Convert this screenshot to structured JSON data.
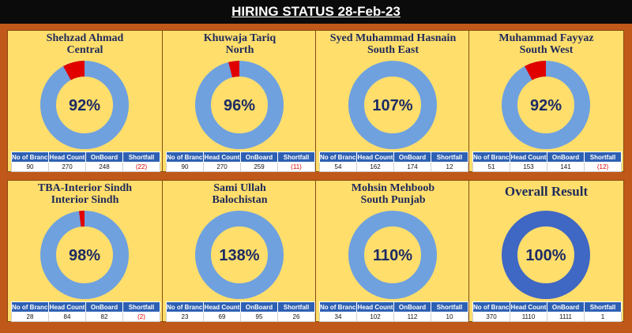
{
  "header": {
    "title": "HIRING STATUS 28-Feb-23"
  },
  "table_headers": [
    "No of Branch",
    "Head Count",
    "OnBoard",
    "Shortfall"
  ],
  "colors": {
    "ring": "#6fa1df",
    "shortfall": "#e00000",
    "overall_ring": "#3f67c4",
    "background": "#c0581a",
    "panel": "#ffde6b",
    "header_cell": "#2d60b3"
  },
  "panels": [
    {
      "name": "Shehzad Ahmad",
      "region": "Central",
      "percent_label": "92%",
      "fill": 0.92,
      "branches": "90",
      "head_count": "270",
      "onboard": "248",
      "shortfall": "(22)"
    },
    {
      "name": "Khuwaja Tariq",
      "region": "North",
      "percent_label": "96%",
      "fill": 0.96,
      "branches": "90",
      "head_count": "270",
      "onboard": "259",
      "shortfall": "(11)"
    },
    {
      "name": "Syed Muhammad Hasnain",
      "region": "South East",
      "percent_label": "107%",
      "fill": 1.0,
      "branches": "54",
      "head_count": "162",
      "onboard": "174",
      "shortfall": "12"
    },
    {
      "name": "Muhammad Fayyaz",
      "region": "South West",
      "percent_label": "92%",
      "fill": 0.92,
      "branches": "51",
      "head_count": "153",
      "onboard": "141",
      "shortfall": "(12)"
    },
    {
      "name": "TBA-Interior Sindh",
      "region": "Interior Sindh",
      "percent_label": "98%",
      "fill": 0.98,
      "branches": "28",
      "head_count": "84",
      "onboard": "82",
      "shortfall": "(2)"
    },
    {
      "name": "Sami Ullah",
      "region": "Balochistan",
      "percent_label": "138%",
      "fill": 1.0,
      "branches": "23",
      "head_count": "69",
      "onboard": "95",
      "shortfall": "26"
    },
    {
      "name": "Mohsin Mehboob",
      "region": "South Punjab",
      "percent_label": "110%",
      "fill": 1.0,
      "branches": "34",
      "head_count": "102",
      "onboard": "112",
      "shortfall": "10"
    },
    {
      "name": "Overall Result",
      "region": "",
      "percent_label": "100%",
      "fill": 1.0,
      "branches": "370",
      "head_count": "1110",
      "onboard": "1111",
      "shortfall": "1",
      "overall": true
    }
  ]
}
